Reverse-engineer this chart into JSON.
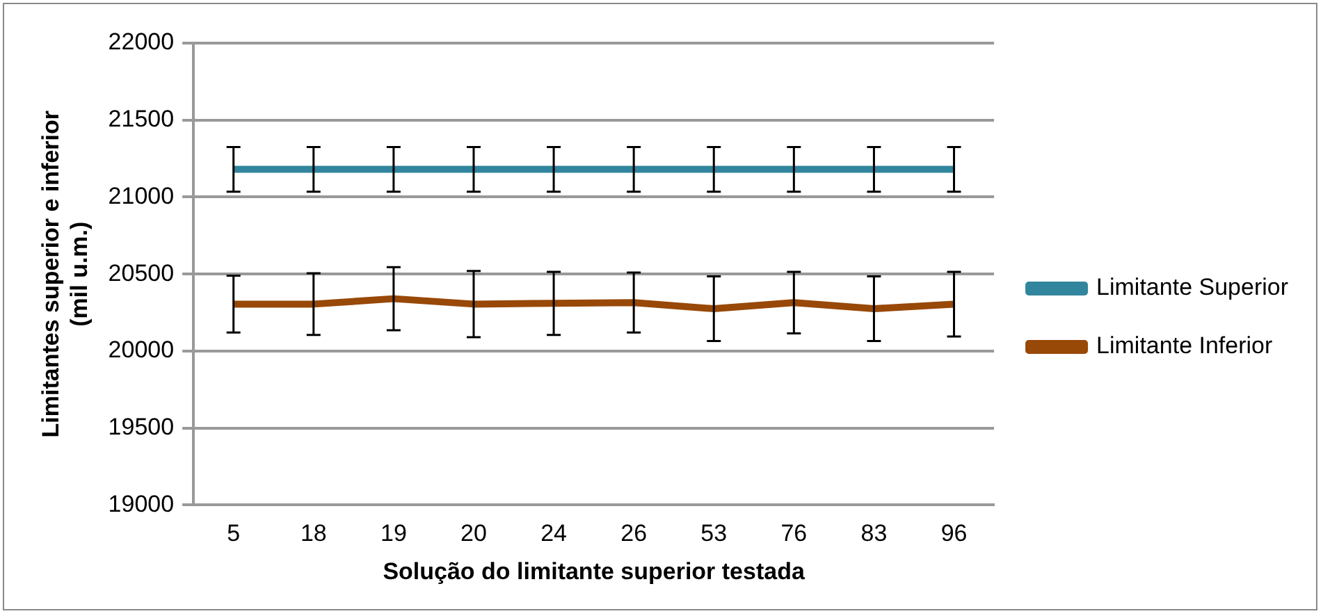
{
  "chart_data": {
    "type": "line",
    "xlabel": "Solução do limitante superior testada",
    "ylabel": "Limitantes superior e inferior (mil u.m.)",
    "categories": [
      "5",
      "18",
      "19",
      "20",
      "24",
      "26",
      "53",
      "76",
      "83",
      "96"
    ],
    "series": [
      {
        "name": "Limitante Superior",
        "color": "#31859c",
        "values": [
          21180,
          21180,
          21180,
          21180,
          21180,
          21180,
          21180,
          21180,
          21180,
          21180
        ],
        "errors": [
          145,
          145,
          145,
          145,
          145,
          145,
          145,
          145,
          145,
          145
        ]
      },
      {
        "name": "Limitante Inferior",
        "color": "#984807",
        "values": [
          20305,
          20305,
          20340,
          20305,
          20310,
          20315,
          20275,
          20315,
          20275,
          20305
        ],
        "errors": [
          185,
          200,
          205,
          215,
          205,
          195,
          210,
          200,
          210,
          210
        ]
      }
    ],
    "ylim": [
      19000,
      22000
    ],
    "yticks": [
      19000,
      19500,
      20000,
      20500,
      21000,
      21500,
      22000
    ],
    "grid": "y",
    "legend": "right",
    "marker": "none",
    "line_style": "solid"
  }
}
